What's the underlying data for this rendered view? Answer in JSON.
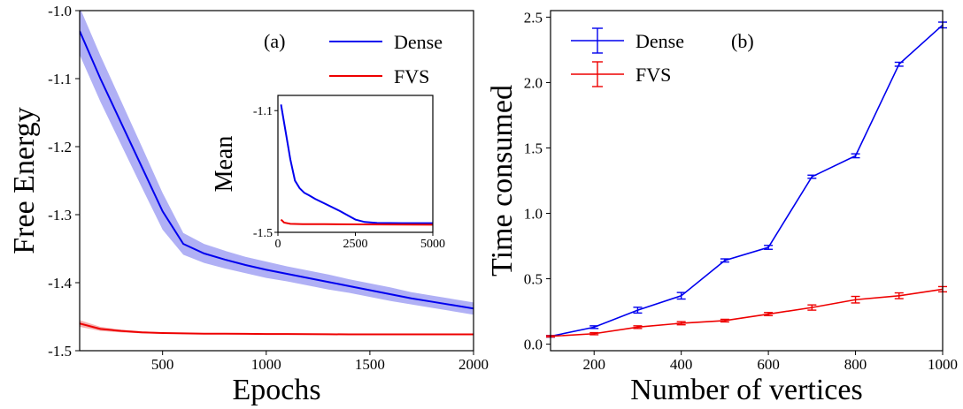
{
  "chart_data": [
    {
      "type": "line",
      "panel_label": "(a)",
      "xlabel": "Epochs",
      "ylabel": "Free Energy",
      "xlim": [
        100,
        2000
      ],
      "ylim": [
        -1.5,
        -1.0
      ],
      "xticks": [
        500,
        1000,
        1500,
        2000
      ],
      "xtick_labels": [
        "500",
        "1000",
        "1500",
        "2000"
      ],
      "yticks": [
        -1.0,
        -1.1,
        -1.2,
        -1.3,
        -1.4,
        -1.5
      ],
      "ytick_labels": [
        "-1.0",
        "-1.1",
        "-1.2",
        "-1.3",
        "-1.4",
        "-1.5"
      ],
      "legend_position": "upper-right",
      "x": [
        100,
        200,
        300,
        400,
        500,
        600,
        700,
        800,
        900,
        1000,
        1100,
        1200,
        1300,
        1400,
        1500,
        1600,
        1700,
        1800,
        1900,
        2000
      ],
      "series": [
        {
          "name": "Dense",
          "color": "#0000ee",
          "band_color": "#b0b0f5",
          "values": [
            -1.03,
            -1.1,
            -1.165,
            -1.23,
            -1.295,
            -1.343,
            -1.357,
            -1.366,
            -1.374,
            -1.381,
            -1.387,
            -1.393,
            -1.399,
            -1.405,
            -1.411,
            -1.417,
            -1.423,
            -1.428,
            -1.433,
            -1.438
          ],
          "band_half_width": [
            0.035,
            0.034,
            0.032,
            0.03,
            0.027,
            0.016,
            0.014,
            0.013,
            0.012,
            0.012,
            0.011,
            0.011,
            0.011,
            0.01,
            0.01,
            0.01,
            0.009,
            0.009,
            0.009,
            0.009
          ]
        },
        {
          "name": "FVS",
          "color": "#ee0000",
          "band_color": "#f5b0b0",
          "values": [
            -1.46,
            -1.468,
            -1.471,
            -1.473,
            -1.474,
            -1.4745,
            -1.475,
            -1.475,
            -1.4752,
            -1.4755,
            -1.4755,
            -1.4757,
            -1.4758,
            -1.476,
            -1.476,
            -1.476,
            -1.476,
            -1.476,
            -1.476,
            -1.476
          ],
          "band_half_width": [
            0.005,
            0.003,
            0.002,
            0.0015,
            0.001,
            0.001,
            0.001,
            0.001,
            0.001,
            0.001,
            0.001,
            0.001,
            0.001,
            0.001,
            0.001,
            0.001,
            0.001,
            0.001,
            0.001,
            0.001
          ]
        }
      ],
      "inset": {
        "type": "line",
        "ylabel": "Mean",
        "xlim": [
          0,
          5000
        ],
        "ylim": [
          -1.5,
          -1.05
        ],
        "xticks": [
          0,
          2500,
          5000
        ],
        "xtick_labels": [
          "0",
          "2500",
          "5000"
        ],
        "yticks": [
          -1.1,
          -1.5
        ],
        "ytick_labels": [
          "-1.1",
          "-1.5"
        ],
        "series": [
          {
            "name": "Dense",
            "color": "#0000ee",
            "x": [
              100,
              250,
              400,
              550,
              700,
              850,
              1000,
              1200,
              1500,
              2000,
              2500,
              2800,
              3200,
              4000,
              5000
            ],
            "values": [
              -1.08,
              -1.17,
              -1.26,
              -1.33,
              -1.355,
              -1.37,
              -1.378,
              -1.39,
              -1.405,
              -1.43,
              -1.458,
              -1.466,
              -1.469,
              -1.47,
              -1.47
            ]
          },
          {
            "name": "FVS",
            "color": "#ee0000",
            "x": [
              100,
              200,
              400,
              800,
              1500,
              2500,
              5000
            ],
            "values": [
              -1.458,
              -1.468,
              -1.472,
              -1.473,
              -1.473,
              -1.474,
              -1.475
            ]
          }
        ]
      }
    },
    {
      "type": "line",
      "panel_label": "(b)",
      "xlabel": "Number of vertices",
      "ylabel": "Time consumed",
      "xlim": [
        100,
        1000
      ],
      "ylim": [
        -0.05,
        2.55
      ],
      "xticks": [
        200,
        400,
        600,
        800,
        1000
      ],
      "xtick_labels": [
        "200",
        "400",
        "600",
        "800",
        "1000"
      ],
      "yticks": [
        0.0,
        0.5,
        1.0,
        1.5,
        2.0,
        2.5
      ],
      "ytick_labels": [
        "0.0",
        "0.5",
        "1.0",
        "1.5",
        "2.0",
        "2.5"
      ],
      "legend_position": "upper-left",
      "x": [
        100,
        200,
        300,
        400,
        500,
        600,
        700,
        800,
        900,
        1000
      ],
      "series": [
        {
          "name": "Dense",
          "color": "#0000ee",
          "values": [
            0.06,
            0.13,
            0.26,
            0.37,
            0.64,
            0.74,
            1.28,
            1.44,
            2.14,
            2.44
          ],
          "errors": [
            0.006,
            0.01,
            0.022,
            0.025,
            0.012,
            0.015,
            0.012,
            0.015,
            0.015,
            0.022
          ]
        },
        {
          "name": "FVS",
          "color": "#ee0000",
          "values": [
            0.06,
            0.08,
            0.13,
            0.16,
            0.18,
            0.23,
            0.28,
            0.34,
            0.37,
            0.42
          ],
          "errors": [
            0.005,
            0.008,
            0.01,
            0.012,
            0.01,
            0.012,
            0.02,
            0.025,
            0.022,
            0.02
          ]
        }
      ]
    }
  ]
}
